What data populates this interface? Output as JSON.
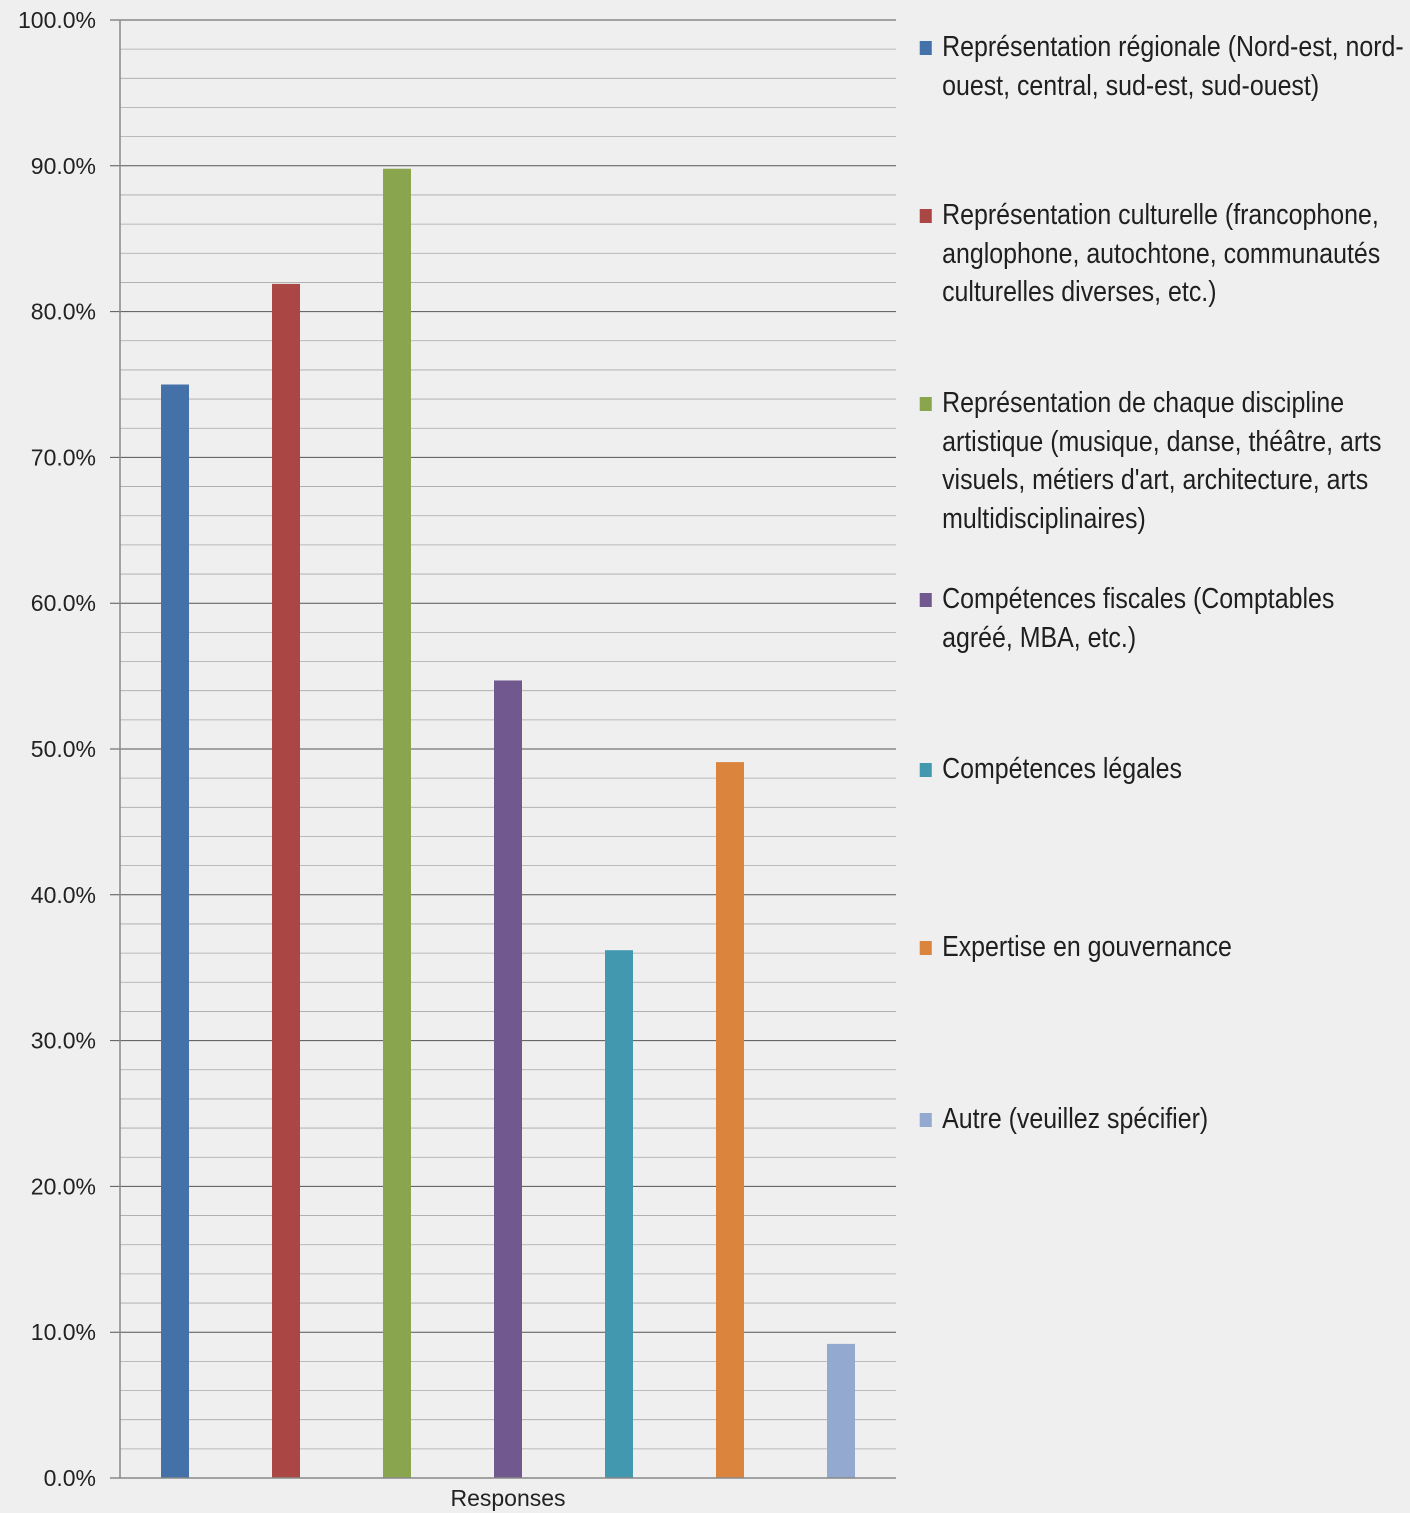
{
  "chart_data": {
    "type": "bar",
    "xlabel": "Responses",
    "ylabel": "",
    "ylim": [
      0,
      100
    ],
    "y_ticks": [
      "0.0%",
      "10.0%",
      "20.0%",
      "30.0%",
      "40.0%",
      "50.0%",
      "60.0%",
      "70.0%",
      "80.0%",
      "90.0%",
      "100.0%"
    ],
    "grid": true,
    "legend_position": "right",
    "categories": [
      "Responses"
    ],
    "series": [
      {
        "name": "Représentation régionale (Nord-est, nord-ouest, central, sud-est, sud-ouest)",
        "values": [
          75.0
        ],
        "color": "#4472a8"
      },
      {
        "name": "Représentation culturelle (francophone, anglophone, autochtone, communautés culturelles diverses, etc.)",
        "values": [
          81.9
        ],
        "color": "#aa4644"
      },
      {
        "name": "Représentation de chaque discipline artistique (musique, danse, théâtre, arts visuels, métiers d'art, architecture, arts multidisciplinaires)",
        "values": [
          89.8
        ],
        "color": "#89a54e"
      },
      {
        "name": "Compétences fiscales (Comptables agréé, MBA, etc.)",
        "values": [
          54.7
        ],
        "color": "#71588f"
      },
      {
        "name": "Compétences légales",
        "values": [
          36.2
        ],
        "color": "#4198af"
      },
      {
        "name": "Expertise en gouvernance",
        "values": [
          49.1
        ],
        "color": "#db843d"
      },
      {
        "name": "Autre (veuillez spécifier)",
        "values": [
          9.2
        ],
        "color": "#93a9cf"
      }
    ]
  }
}
